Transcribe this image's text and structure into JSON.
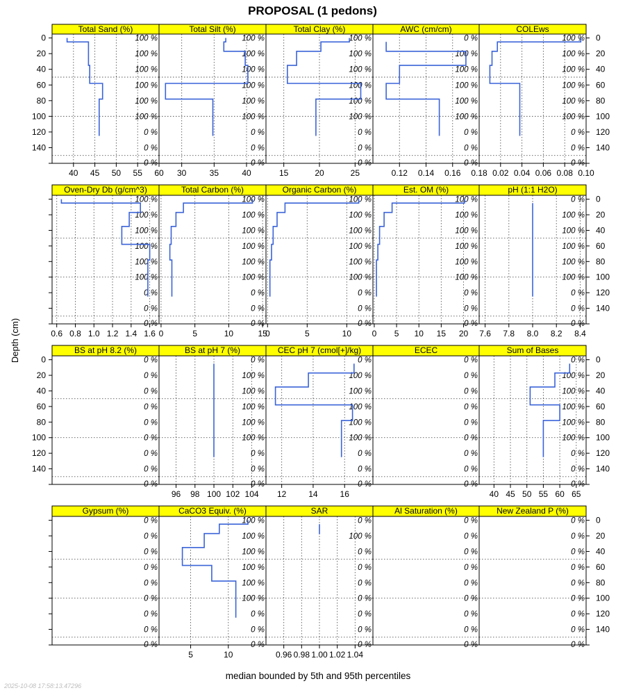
{
  "title": "PROPOSAL (1 pedons)",
  "ylabel": "Depth (cm)",
  "xlabel": "median bounded by 5th and 95th percentiles",
  "timestamp": "2025-10-08 17:58:13.47296",
  "colors": {
    "strip": "#ffff00",
    "series": "#3a63d8"
  },
  "depth_ticks": [
    "0",
    "20",
    "40",
    "60",
    "80",
    "100",
    "120",
    "140"
  ],
  "chart_data": [
    {
      "type": "line",
      "title": "Total Sand (%)",
      "xlim": [
        35,
        60
      ],
      "xticks": [
        "40",
        "45",
        "50",
        "55",
        "60"
      ],
      "xtick_values": [
        40,
        45,
        50,
        55,
        60
      ],
      "pct": [
        "100 %",
        "100 %",
        "100 %",
        "100 %",
        "100 %",
        "100 %",
        "0 %",
        "0 %"
      ],
      "depths": [
        [
          0,
          5
        ],
        [
          5,
          17
        ],
        [
          17,
          35
        ],
        [
          35,
          58
        ],
        [
          58,
          78
        ],
        [
          78,
          125
        ]
      ],
      "values": [
        38.5,
        43.5,
        43.5,
        43.8,
        46.8,
        46
      ]
    },
    {
      "type": "line",
      "title": "Total Silt (%)",
      "xlim": [
        26.5,
        43
      ],
      "xticks": [
        "30",
        "35",
        "40"
      ],
      "xtick_values": [
        30,
        35,
        40
      ],
      "pct": [
        "100 %",
        "100 %",
        "100 %",
        "100 %",
        "100 %",
        "100 %",
        "0 %",
        "0 %"
      ],
      "depths": [
        [
          0,
          5
        ],
        [
          5,
          17
        ],
        [
          17,
          35
        ],
        [
          35,
          58
        ],
        [
          58,
          78
        ],
        [
          78,
          125
        ]
      ],
      "values": [
        36.8,
        36.5,
        39.8,
        40.2,
        27.5,
        34.8
      ]
    },
    {
      "type": "line",
      "title": "Total Clay (%)",
      "xlim": [
        12.5,
        27.5
      ],
      "xticks": [
        "15",
        "20",
        "25"
      ],
      "xtick_values": [
        15,
        20,
        25
      ],
      "pct": [
        "100 %",
        "100 %",
        "100 %",
        "100 %",
        "100 %",
        "100 %",
        "0 %",
        "0 %"
      ],
      "depths": [
        [
          0,
          5
        ],
        [
          5,
          17
        ],
        [
          17,
          35
        ],
        [
          35,
          58
        ],
        [
          58,
          78
        ],
        [
          78,
          125
        ]
      ],
      "values": [
        24.2,
        20.2,
        16.8,
        15.5,
        25.8,
        19.5
      ]
    },
    {
      "type": "line",
      "title": "AWC (cm/cm)",
      "xlim": [
        0.1,
        0.18
      ],
      "xticks": [
        "0.12",
        "0.14",
        "0.16",
        "0.18"
      ],
      "xtick_values": [
        0.12,
        0.14,
        0.16,
        0.18
      ],
      "pct": [
        "0 %",
        "100 %",
        "100 %",
        "100 %",
        "100 %",
        "100 %",
        "0 %",
        "0 %"
      ],
      "depths": [
        [
          5,
          17
        ],
        [
          17,
          35
        ],
        [
          35,
          58
        ],
        [
          58,
          78
        ],
        [
          78,
          125
        ]
      ],
      "values": [
        0.11,
        0.17,
        0.12,
        0.11,
        0.15
      ]
    },
    {
      "type": "line",
      "title": "COLEws",
      "xlim": [
        0,
        0.1
      ],
      "xticks": [
        "0.02",
        "0.04",
        "0.06",
        "0.08",
        "0.10"
      ],
      "xtick_values": [
        0.02,
        0.04,
        0.06,
        0.08,
        0.1
      ],
      "pct": [
        "100 %",
        "100 %",
        "100 %",
        "100 %",
        "100 %",
        "100 %",
        "0 %",
        "0 %"
      ],
      "depths": [
        [
          0,
          5
        ],
        [
          5,
          17
        ],
        [
          17,
          35
        ],
        [
          35,
          58
        ],
        [
          58,
          78
        ],
        [
          78,
          125
        ]
      ],
      "values": [
        0.095,
        0.017,
        0.012,
        0.01,
        0.038,
        0.038
      ]
    },
    {
      "type": "line",
      "title": "Oven-Dry Db (g/cm^3)",
      "xlim": [
        0.55,
        1.7
      ],
      "xticks": [
        "0.6",
        "0.8",
        "1.0",
        "1.2",
        "1.4",
        "1.6"
      ],
      "xtick_values": [
        0.6,
        0.8,
        1.0,
        1.2,
        1.4,
        1.6
      ],
      "pct": [
        "100 %",
        "100 %",
        "100 %",
        "100 %",
        "100 %",
        "100 %",
        "0 %",
        "0 %"
      ],
      "depths": [
        [
          0,
          5
        ],
        [
          5,
          17
        ],
        [
          17,
          35
        ],
        [
          35,
          58
        ],
        [
          58,
          78
        ],
        [
          78,
          125
        ]
      ],
      "values": [
        0.65,
        1.5,
        1.38,
        1.3,
        1.6,
        1.58
      ]
    },
    {
      "type": "line",
      "title": "Total Carbon (%)",
      "xlim": [
        -0.3,
        15.5
      ],
      "xticks": [
        "0",
        "5",
        "10",
        "15"
      ],
      "xtick_values": [
        0,
        5,
        10,
        15
      ],
      "pct": [
        "100 %",
        "100 %",
        "100 %",
        "100 %",
        "100 %",
        "100 %",
        "0 %",
        "0 %"
      ],
      "depths": [
        [
          0,
          5
        ],
        [
          5,
          17
        ],
        [
          17,
          35
        ],
        [
          35,
          58
        ],
        [
          58,
          78
        ],
        [
          78,
          125
        ]
      ],
      "values": [
        13.5,
        3.3,
        2.2,
        1.5,
        1.3,
        1.6
      ]
    },
    {
      "type": "line",
      "title": "Organic Carbon (%)",
      "xlim": [
        -0.2,
        13.3
      ],
      "xticks": [
        "0",
        "5",
        "10"
      ],
      "xtick_values": [
        0,
        5,
        10
      ],
      "pct": [
        "100 %",
        "100 %",
        "100 %",
        "100 %",
        "100 %",
        "100 %",
        "0 %",
        "0 %"
      ],
      "depths": [
        [
          0,
          5
        ],
        [
          5,
          17
        ],
        [
          17,
          35
        ],
        [
          35,
          58
        ],
        [
          58,
          78
        ],
        [
          78,
          125
        ]
      ],
      "values": [
        11.5,
        2.2,
        1.2,
        0.7,
        0.5,
        0.3
      ]
    },
    {
      "type": "line",
      "title": "Est. OM (%)",
      "xlim": [
        -0.3,
        23.5
      ],
      "xticks": [
        "0",
        "5",
        "10",
        "15",
        "20"
      ],
      "xtick_values": [
        0,
        5,
        10,
        15,
        20
      ],
      "pct": [
        "100 %",
        "100 %",
        "100 %",
        "100 %",
        "100 %",
        "100 %",
        "0 %",
        "0 %"
      ],
      "depths": [
        [
          0,
          5
        ],
        [
          5,
          17
        ],
        [
          17,
          35
        ],
        [
          35,
          58
        ],
        [
          58,
          78
        ],
        [
          78,
          125
        ]
      ],
      "values": [
        20.2,
        4.0,
        2.2,
        1.2,
        0.8,
        0.5
      ]
    },
    {
      "type": "line",
      "title": "pH (1:1 H2O)",
      "xlim": [
        7.55,
        8.45
      ],
      "xticks": [
        "7.6",
        "7.8",
        "8.0",
        "8.2",
        "8.4"
      ],
      "xtick_values": [
        7.6,
        7.8,
        8.0,
        8.2,
        8.4
      ],
      "pct": [
        "0 %",
        "100 %",
        "100 %",
        "100 %",
        "100 %",
        "100 %",
        "0 %",
        "0 %"
      ],
      "depths": [
        [
          5,
          17
        ],
        [
          17,
          35
        ],
        [
          35,
          58
        ],
        [
          58,
          78
        ],
        [
          78,
          125
        ]
      ],
      "values": [
        8.0,
        8.0,
        8.0,
        8.0,
        8.0
      ]
    },
    {
      "type": "line",
      "title": "BS at pH 8.2 (%)",
      "xlim": [
        0,
        1
      ],
      "xticks": [],
      "xtick_values": [],
      "pct": [
        "0 %",
        "0 %",
        "0 %",
        "0 %",
        "0 %",
        "0 %",
        "0 %",
        "0 %"
      ],
      "depths": [],
      "values": []
    },
    {
      "type": "line",
      "title": "BS at pH 7 (%)",
      "xlim": [
        94.2,
        105.5
      ],
      "xticks": [
        "96",
        "98",
        "100",
        "102",
        "104"
      ],
      "xtick_values": [
        96,
        98,
        100,
        102,
        104
      ],
      "pct": [
        "0 %",
        "100 %",
        "100 %",
        "100 %",
        "100 %",
        "100 %",
        "0 %",
        "0 %"
      ],
      "depths": [
        [
          5,
          17
        ],
        [
          17,
          35
        ],
        [
          35,
          58
        ],
        [
          58,
          78
        ],
        [
          78,
          125
        ]
      ],
      "values": [
        100,
        100,
        100,
        100,
        100
      ]
    },
    {
      "type": "line",
      "title": "CEC pH 7 (cmol[+]/kg)",
      "xlim": [
        11,
        17.8
      ],
      "xticks": [
        "12",
        "14",
        "16"
      ],
      "xtick_values": [
        12,
        14,
        16
      ],
      "pct": [
        "0 %",
        "100 %",
        "100 %",
        "100 %",
        "100 %",
        "100 %",
        "0 %",
        "0 %"
      ],
      "depths": [
        [
          5,
          17
        ],
        [
          17,
          35
        ],
        [
          35,
          58
        ],
        [
          58,
          78
        ],
        [
          78,
          125
        ]
      ],
      "values": [
        16.6,
        13.7,
        11.6,
        16.5,
        15.8
      ]
    },
    {
      "type": "line",
      "title": "ECEC",
      "xlim": [
        0,
        1
      ],
      "xticks": [],
      "xtick_values": [],
      "pct": [
        "0 %",
        "0 %",
        "0 %",
        "0 %",
        "0 %",
        "0 %",
        "0 %",
        "0 %"
      ],
      "depths": [],
      "values": []
    },
    {
      "type": "line",
      "title": "Sum of Bases",
      "xlim": [
        35.5,
        68
      ],
      "xticks": [
        "40",
        "45",
        "50",
        "55",
        "60",
        "65"
      ],
      "xtick_values": [
        40,
        45,
        50,
        55,
        60,
        65
      ],
      "pct": [
        "0 %",
        "100 %",
        "100 %",
        "100 %",
        "100 %",
        "100 %",
        "0 %",
        "0 %"
      ],
      "depths": [
        [
          5,
          17
        ],
        [
          17,
          35
        ],
        [
          35,
          58
        ],
        [
          58,
          78
        ],
        [
          78,
          125
        ]
      ],
      "values": [
        63,
        58.5,
        51,
        60,
        55
      ]
    },
    {
      "type": "line",
      "title": "Gypsum (%)",
      "xlim": [
        0,
        1
      ],
      "xticks": [],
      "xtick_values": [],
      "pct": [
        "0 %",
        "0 %",
        "0 %",
        "0 %",
        "0 %",
        "0 %",
        "0 %",
        "0 %"
      ],
      "depths": [],
      "values": []
    },
    {
      "type": "line",
      "title": "CaCO3 Equiv. (%)",
      "xlim": [
        0.8,
        15
      ],
      "xticks": [
        "5",
        "10"
      ],
      "xtick_values": [
        5,
        10
      ],
      "pct": [
        "100 %",
        "100 %",
        "100 %",
        "100 %",
        "100 %",
        "100 %",
        "0 %",
        "0 %"
      ],
      "depths": [
        [
          0,
          5
        ],
        [
          5,
          17
        ],
        [
          17,
          35
        ],
        [
          35,
          58
        ],
        [
          58,
          78
        ],
        [
          78,
          125
        ]
      ],
      "values": [
        12.6,
        8.8,
        6.8,
        3.9,
        7.8,
        11
      ]
    },
    {
      "type": "line",
      "title": "SAR",
      "xlim": [
        0.94,
        1.06
      ],
      "xticks": [
        "0.96",
        "0.98",
        "1.00",
        "1.02",
        "1.04"
      ],
      "xtick_values": [
        0.96,
        0.98,
        1.0,
        1.02,
        1.04
      ],
      "pct": [
        "0 %",
        "100 %",
        "0 %",
        "0 %",
        "0 %",
        "0 %",
        "0 %",
        "0 %"
      ],
      "depths": [
        [
          5,
          18
        ]
      ],
      "values": [
        1.0
      ]
    },
    {
      "type": "line",
      "title": "Al Saturation (%)",
      "xlim": [
        0,
        1
      ],
      "xticks": [],
      "xtick_values": [],
      "pct": [
        "0 %",
        "0 %",
        "0 %",
        "0 %",
        "0 %",
        "0 %",
        "0 %",
        "0 %"
      ],
      "depths": [],
      "values": []
    },
    {
      "type": "line",
      "title": "New Zealand P (%)",
      "xlim": [
        0,
        1
      ],
      "xticks": [],
      "xtick_values": [],
      "pct": [
        "0 %",
        "0 %",
        "0 %",
        "0 %",
        "0 %",
        "0 %",
        "0 %",
        "0 %"
      ],
      "depths": [],
      "values": []
    }
  ]
}
